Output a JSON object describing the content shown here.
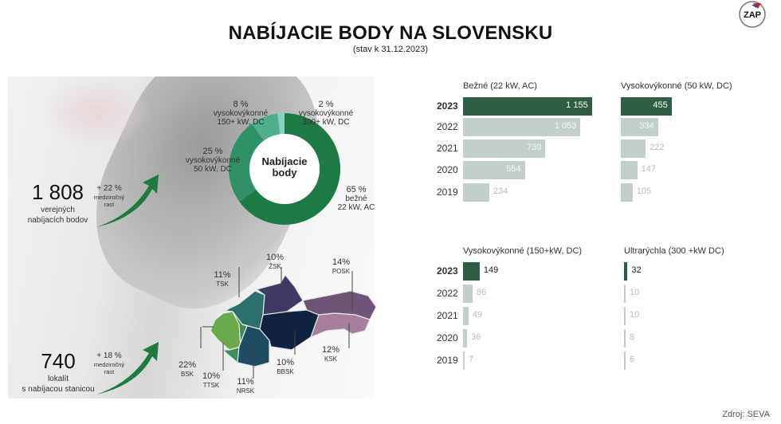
{
  "header": {
    "title": "NABÍJACIE BODY NA SLOVENSKU",
    "subtitle": "(stav k 31.12.2023)",
    "logo_text": "ZAP"
  },
  "stats": [
    {
      "value": "1 808",
      "label1": "verejných",
      "label2": "nabíjacích bodov",
      "growth": "+ 22 %",
      "growth_label1": "medziročný",
      "growth_label2": "rast"
    },
    {
      "value": "740",
      "label1": "lokalít",
      "label2": "s nabíjacou stanicou",
      "growth": "+ 18 %",
      "growth_label1": "medziročný",
      "growth_label2": "rast"
    }
  ],
  "colors": {
    "accent_dark": "#2f5e46",
    "bar_light": "#c3cfc8",
    "arrow": "#1e7a3f"
  },
  "chart_data": [
    {
      "type": "pie",
      "title": "Nabíjacie body",
      "slices": [
        {
          "pct": "65 %",
          "value": 65,
          "l1": "bežné",
          "l2": "22 kW, AC",
          "color": "#1e7a45"
        },
        {
          "pct": "25 %",
          "value": 25,
          "l1": "vysokovýkonné",
          "l2": "50 kW, DC",
          "color": "#2f8f66"
        },
        {
          "pct": "8 %",
          "value": 8,
          "l1": "vysokovýkonné",
          "l2": "150+ kW, DC",
          "color": "#4fae8c"
        },
        {
          "pct": "2 %",
          "value": 2,
          "l1": "vysokovýkonné",
          "l2": "300+ kW, DC",
          "color": "#86d3c4"
        }
      ]
    },
    {
      "type": "map",
      "regions": [
        {
          "name": "BSK",
          "pct": "22%",
          "value": 22,
          "color": "#6aaa4a"
        },
        {
          "name": "TTSK",
          "pct": "10%",
          "value": 10,
          "color": "#3e8e5a"
        },
        {
          "name": "TSK",
          "pct": "11%",
          "value": 11,
          "color": "#2d6f6a"
        },
        {
          "name": "NRSK",
          "pct": "11%",
          "value": 11,
          "color": "#1d4c63"
        },
        {
          "name": "ŽSK",
          "pct": "10%",
          "value": 10,
          "color": "#3f3a63"
        },
        {
          "name": "BBSK",
          "pct": "10%",
          "value": 10,
          "color": "#0f2340"
        },
        {
          "name": "POSK",
          "pct": "14%",
          "value": 14,
          "color": "#6e5578"
        },
        {
          "name": "KSK",
          "pct": "12%",
          "value": 12,
          "color": "#a77f9c"
        }
      ]
    },
    {
      "type": "bar",
      "title": "Bežné (22 kW, AC)",
      "categories": [
        "2023",
        "2022",
        "2021",
        "2020",
        "2019"
      ],
      "values": [
        1155,
        1053,
        739,
        554,
        234
      ],
      "labels": [
        "1 155",
        "1 053",
        "739",
        "554",
        "234"
      ]
    },
    {
      "type": "bar",
      "title": "Vysokovýkonné (50 kW, DC)",
      "categories": [
        "2023",
        "2022",
        "2021",
        "2020",
        "2019"
      ],
      "values": [
        455,
        334,
        222,
        147,
        105
      ],
      "labels": [
        "455",
        "334",
        "222",
        "147",
        "105"
      ]
    },
    {
      "type": "bar",
      "title": "Vysokovýkonné (150+kW, DC)",
      "categories": [
        "2023",
        "2022",
        "2021",
        "2020",
        "2019"
      ],
      "values": [
        149,
        86,
        49,
        36,
        7
      ],
      "labels": [
        "149",
        "86",
        "49",
        "36",
        "7"
      ]
    },
    {
      "type": "bar",
      "title": "Ultrarýchla (300 +kW DC)",
      "categories": [
        "2023",
        "2022",
        "2021",
        "2020",
        "2019"
      ],
      "values": [
        32,
        10,
        10,
        8,
        6
      ],
      "labels": [
        "32",
        "10",
        "10",
        "8",
        "6"
      ]
    }
  ],
  "footer": {
    "source": "Zdroj: SEVA"
  }
}
